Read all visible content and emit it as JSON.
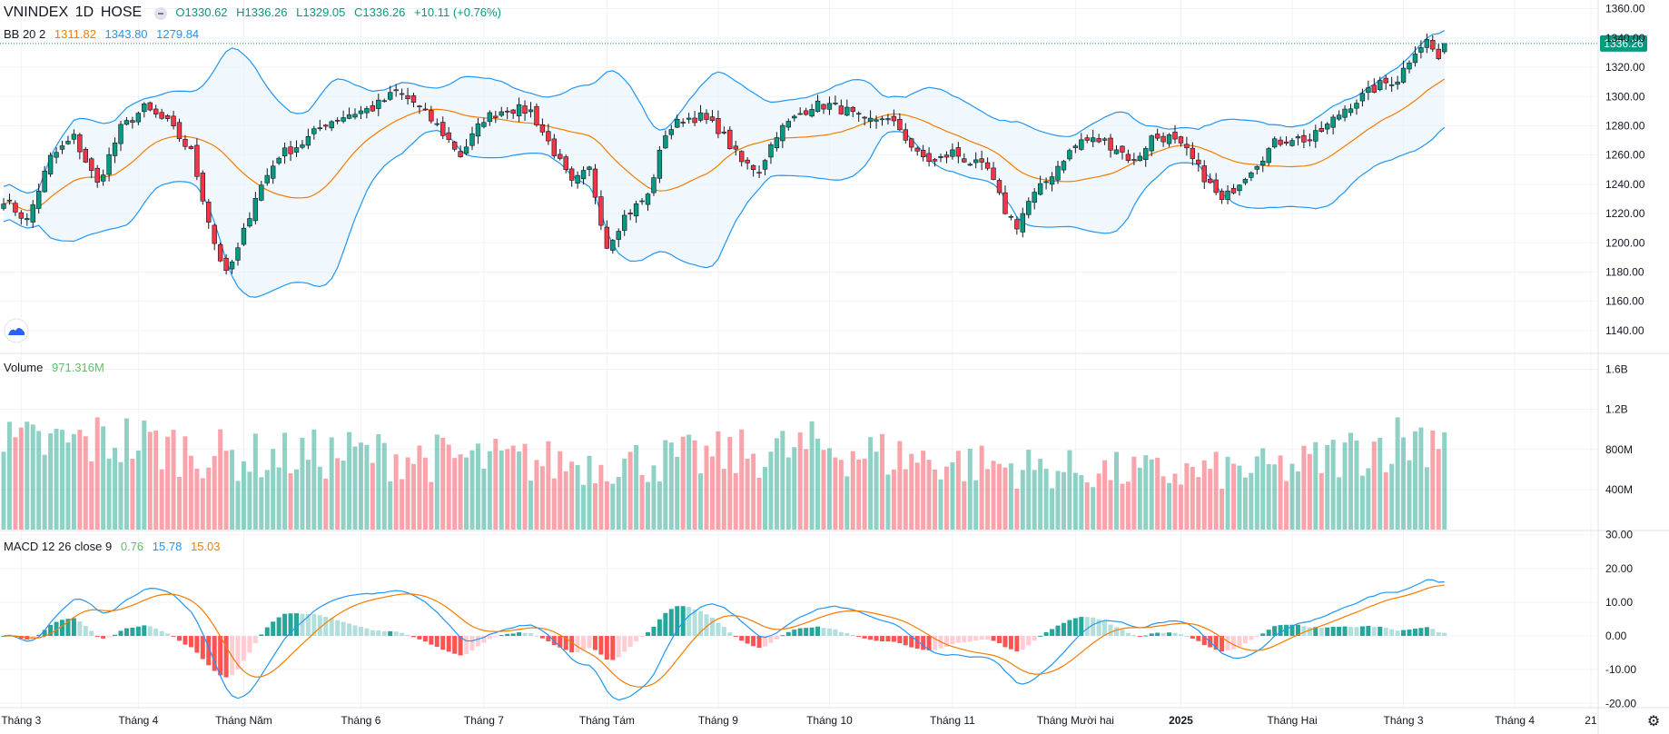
{
  "header": {
    "symbol": "VNINDEX",
    "interval": "1D",
    "exchange": "HOSE",
    "open": "O1330.62",
    "high": "H1336.26",
    "low": "L1329.05",
    "close": "C1336.26",
    "change": "+10.11 (+0.76%)"
  },
  "bb": {
    "label": "BB 20 2",
    "basis": "1311.82",
    "upper": "1343.80",
    "lower": "1279.84"
  },
  "volume": {
    "label": "Volume",
    "value": "971.316M"
  },
  "macd": {
    "label": "MACD 12 26 close 9",
    "hist": "0.76",
    "macd": "15.78",
    "signal": "15.03"
  },
  "last_price_label": "1336.26",
  "colors": {
    "up": "#089981",
    "down": "#f23645",
    "basis": "#f57c00",
    "bands": "#2196f3",
    "band_fill": "#e3f2fd"
  },
  "chart_data": [
    {
      "type": "candlestick",
      "title": "",
      "y_ticks": [
        1140,
        1160,
        1180,
        1200,
        1220,
        1240,
        1260,
        1280,
        1300,
        1320,
        1340,
        1360
      ],
      "y_tick_labels": [
        "1140.00",
        "1160.00",
        "1180.00",
        "1200.00",
        "1220.00",
        "1240.00",
        "1260.00",
        "1280.00",
        "1300.00",
        "1320.00",
        "1340.00",
        "1360.00"
      ],
      "ylim": [
        1125,
        1366
      ],
      "x_labels": [
        "Tháng 3",
        "Tháng 4",
        "Tháng Năm",
        "Tháng 6",
        "Tháng 7",
        "Tháng Tám",
        "Tháng 9",
        "Tháng 10",
        "Tháng 11",
        "Tháng Mười hai",
        "2025",
        "Tháng Hai",
        "Tháng 3",
        "Tháng 4",
        "21"
      ],
      "x_label_bar_index": [
        3,
        23,
        41,
        61,
        82,
        103,
        122,
        141,
        162,
        183,
        201,
        220,
        239,
        258,
        271
      ],
      "close_anchors": [
        [
          0,
          1230
        ],
        [
          4,
          1215
        ],
        [
          8,
          1258
        ],
        [
          12,
          1272
        ],
        [
          16,
          1240
        ],
        [
          20,
          1278
        ],
        [
          24,
          1292
        ],
        [
          28,
          1282
        ],
        [
          32,
          1262
        ],
        [
          36,
          1200
        ],
        [
          38,
          1178
        ],
        [
          40,
          1195
        ],
        [
          43,
          1232
        ],
        [
          47,
          1260
        ],
        [
          51,
          1268
        ],
        [
          55,
          1282
        ],
        [
          59,
          1288
        ],
        [
          63,
          1292
        ],
        [
          67,
          1303
        ],
        [
          70,
          1296
        ],
        [
          74,
          1280
        ],
        [
          78,
          1260
        ],
        [
          82,
          1285
        ],
        [
          86,
          1292
        ],
        [
          90,
          1290
        ],
        [
          94,
          1262
        ],
        [
          97,
          1240
        ],
        [
          100,
          1250
        ],
        [
          103,
          1198
        ],
        [
          106,
          1218
        ],
        [
          110,
          1232
        ],
        [
          113,
          1275
        ],
        [
          116,
          1285
        ],
        [
          119,
          1286
        ],
        [
          122,
          1278
        ],
        [
          126,
          1255
        ],
        [
          129,
          1250
        ],
        [
          132,
          1275
        ],
        [
          135,
          1285
        ],
        [
          138,
          1294
        ],
        [
          141,
          1294
        ],
        [
          144,
          1290
        ],
        [
          147,
          1282
        ],
        [
          150,
          1286
        ],
        [
          153,
          1278
        ],
        [
          156,
          1260
        ],
        [
          159,
          1255
        ],
        [
          162,
          1262
        ],
        [
          165,
          1255
        ],
        [
          168,
          1250
        ],
        [
          171,
          1222
        ],
        [
          173,
          1212
        ],
        [
          175,
          1228
        ],
        [
          178,
          1242
        ],
        [
          181,
          1258
        ],
        [
          184,
          1270
        ],
        [
          187,
          1270
        ],
        [
          190,
          1265
        ],
        [
          193,
          1255
        ],
        [
          196,
          1272
        ],
        [
          199,
          1272
        ],
        [
          202,
          1262
        ],
        [
          205,
          1245
        ],
        [
          208,
          1228
        ],
        [
          211,
          1242
        ],
        [
          214,
          1255
        ],
        [
          217,
          1268
        ],
        [
          220,
          1272
        ],
        [
          223,
          1270
        ],
        [
          226,
          1280
        ],
        [
          229,
          1292
        ],
        [
          232,
          1300
        ],
        [
          235,
          1308
        ],
        [
          238,
          1312
        ],
        [
          241,
          1332
        ],
        [
          243,
          1338
        ],
        [
          245,
          1326
        ],
        [
          246,
          1336.26
        ]
      ],
      "bb_period": 20,
      "bb_mult": 2
    },
    {
      "type": "bar",
      "title": "Volume",
      "y_tick_labels": [
        "400M",
        "800M",
        "1.2B",
        "1.6B"
      ],
      "y_ticks": [
        400,
        800,
        1200,
        1600
      ],
      "ylim": [
        0,
        1750
      ],
      "units": "M",
      "value_anchors": [
        [
          0,
          820
        ],
        [
          20,
          900
        ],
        [
          40,
          720
        ],
        [
          60,
          760
        ],
        [
          80,
          700
        ],
        [
          100,
          660
        ],
        [
          120,
          720
        ],
        [
          140,
          820
        ],
        [
          160,
          680
        ],
        [
          180,
          600
        ],
        [
          200,
          560
        ],
        [
          220,
          620
        ],
        [
          235,
          860
        ],
        [
          246,
          971.316
        ]
      ]
    },
    {
      "type": "macd",
      "title": "MACD 12 26 close 9",
      "y_ticks": [
        -20,
        -10,
        0,
        10,
        20,
        30
      ],
      "y_tick_labels": [
        "-20.00",
        "-10.00",
        "0.00",
        "10.00",
        "20.00",
        "30.00"
      ],
      "ylim": [
        -21,
        31
      ],
      "series": [
        {
          "name": "MACD",
          "color": "#2196f3"
        },
        {
          "name": "Signal",
          "color": "#f57c00"
        },
        {
          "name": "Histogram",
          "color": "#26a69a"
        }
      ]
    }
  ]
}
